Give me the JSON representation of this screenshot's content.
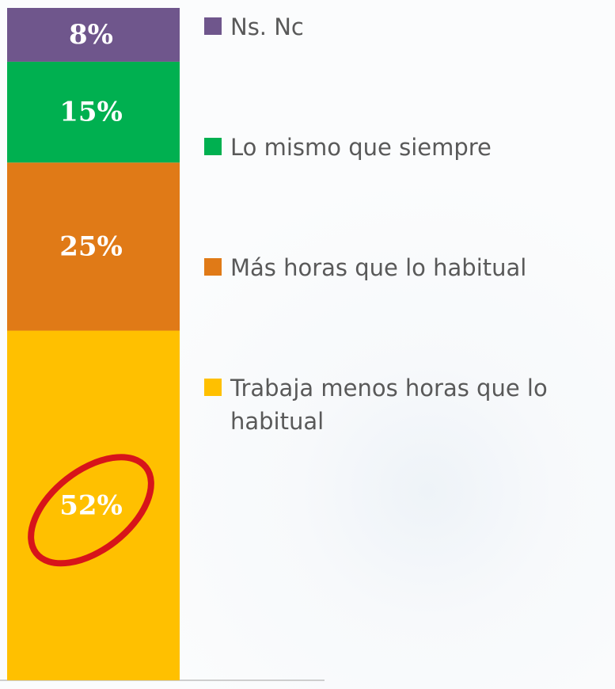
{
  "chart_data": {
    "type": "stacked_bar",
    "categories": [
      null
    ],
    "series": [
      {
        "name": "Trabaja menos horas que lo habitual",
        "color": "#ffc000",
        "values": [
          52
        ],
        "value_labels": [
          "52%"
        ]
      },
      {
        "name": "Más horas que lo habitual",
        "color": "#e07a17",
        "values": [
          25
        ],
        "value_labels": [
          "25%"
        ]
      },
      {
        "name": "Lo mismo que siempre",
        "color": "#00b050",
        "values": [
          15
        ],
        "value_labels": [
          "15%"
        ]
      },
      {
        "name": "Ns. Nc",
        "color": "#6f568c",
        "values": [
          8
        ],
        "value_labels": [
          "8%"
        ]
      }
    ],
    "ylim": [
      0,
      100
    ]
  }
}
